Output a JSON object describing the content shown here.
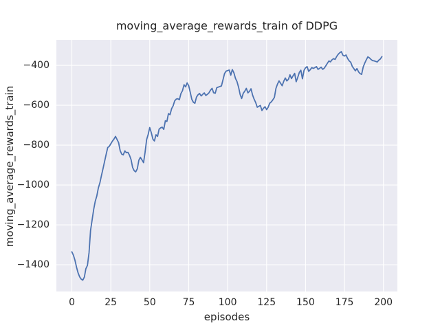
{
  "title": "moving_average_rewards_train of DDPG",
  "xlabel": "episodes",
  "ylabel": "moving_average_rewards_train",
  "colors": {
    "figure_background": "#ffffff",
    "axes_background": "#eaeaf2",
    "grid": "#ffffff",
    "line": "#4c72b0",
    "text": "#262626"
  },
  "chart_data": {
    "type": "line",
    "title": "moving_average_rewards_train of DDPG",
    "xlabel": "episodes",
    "ylabel": "moving_average_rewards_train",
    "legend": "none",
    "grid": "on",
    "xlim": [
      -9.95,
      208.95
    ],
    "ylim": [
      -1534,
      -272
    ],
    "x_tick_values": [
      0,
      25,
      50,
      75,
      100,
      125,
      150,
      175,
      200
    ],
    "x_tick_labels": [
      "0",
      "25",
      "50",
      "75",
      "100",
      "125",
      "150",
      "175",
      "200"
    ],
    "y_tick_values": [
      -400,
      -600,
      -800,
      -1000,
      -1200,
      -1400
    ],
    "y_tick_labels": [
      "−400",
      "−600",
      "−800",
      "−1000",
      "−1200",
      "−1400"
    ],
    "x": {
      "start": 0,
      "step": 1,
      "count": 200
    },
    "series": [
      {
        "name": "moving_average_rewards_train",
        "color": "#4c72b0",
        "values": [
          -1335,
          -1352,
          -1378,
          -1412,
          -1441,
          -1461,
          -1472,
          -1477,
          -1462,
          -1420,
          -1403,
          -1340,
          -1228,
          -1175,
          -1122,
          -1082,
          -1055,
          -1014,
          -989,
          -952,
          -917,
          -882,
          -846,
          -812,
          -806,
          -793,
          -780,
          -770,
          -756,
          -772,
          -787,
          -828,
          -845,
          -849,
          -829,
          -838,
          -836,
          -851,
          -872,
          -912,
          -928,
          -934,
          -919,
          -875,
          -861,
          -874,
          -888,
          -836,
          -772,
          -745,
          -712,
          -738,
          -770,
          -779,
          -748,
          -756,
          -720,
          -713,
          -710,
          -721,
          -678,
          -681,
          -642,
          -647,
          -617,
          -603,
          -578,
          -569,
          -567,
          -572,
          -541,
          -527,
          -497,
          -508,
          -488,
          -502,
          -536,
          -570,
          -585,
          -590,
          -559,
          -547,
          -541,
          -553,
          -545,
          -538,
          -551,
          -545,
          -538,
          -524,
          -515,
          -537,
          -540,
          -512,
          -509,
          -506,
          -503,
          -473,
          -441,
          -429,
          -426,
          -423,
          -449,
          -421,
          -437,
          -465,
          -481,
          -509,
          -546,
          -566,
          -540,
          -529,
          -515,
          -538,
          -530,
          -517,
          -549,
          -570,
          -586,
          -610,
          -605,
          -601,
          -626,
          -615,
          -607,
          -622,
          -610,
          -590,
          -583,
          -573,
          -561,
          -515,
          -494,
          -478,
          -490,
          -502,
          -480,
          -463,
          -478,
          -470,
          -447,
          -466,
          -452,
          -440,
          -482,
          -460,
          -435,
          -424,
          -467,
          -425,
          -412,
          -406,
          -430,
          -422,
          -411,
          -415,
          -411,
          -406,
          -420,
          -415,
          -409,
          -420,
          -414,
          -402,
          -390,
          -378,
          -382,
          -372,
          -366,
          -370,
          -355,
          -344,
          -336,
          -331,
          -349,
          -353,
          -348,
          -365,
          -377,
          -384,
          -405,
          -416,
          -427,
          -416,
          -432,
          -441,
          -445,
          -408,
          -389,
          -372,
          -357,
          -362,
          -370,
          -376,
          -377,
          -380,
          -383,
          -374,
          -368,
          -356
        ]
      }
    ]
  }
}
